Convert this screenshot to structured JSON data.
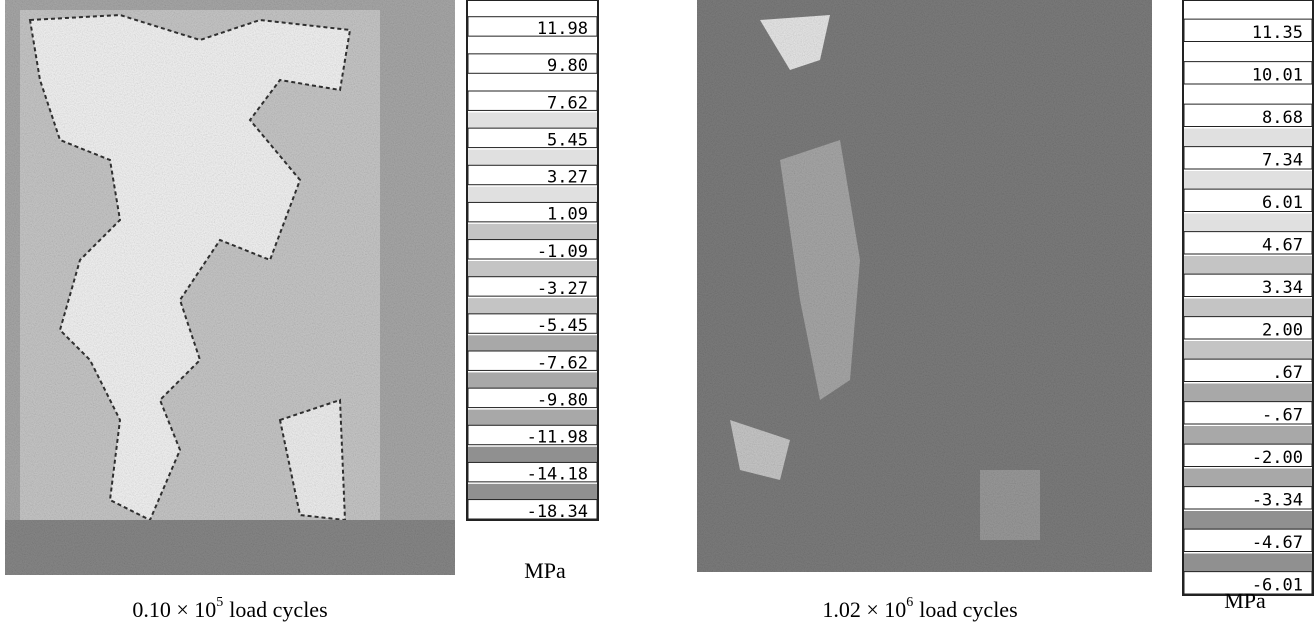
{
  "panels": [
    {
      "legend": [
        "11.98",
        "9.80",
        "7.62",
        "5.45",
        "3.27",
        "1.09",
        "-1.09",
        "-3.27",
        "-5.45",
        "-7.62",
        "-9.80",
        "-11.98",
        "-14.18",
        "-18.34"
      ],
      "unit": "MPa",
      "caption": {
        "base": "0.10 × 10",
        "exponent": "5",
        "text": "load cycles"
      }
    },
    {
      "legend": [
        "11.35",
        "10.01",
        "8.68",
        "7.34",
        "6.01",
        "4.67",
        "3.34",
        "2.00",
        ".67",
        "-.67",
        "-2.00",
        "-3.34",
        "-4.67",
        "-6.01"
      ],
      "unit": "MPa",
      "caption": {
        "base": "1.02 × 10",
        "exponent": "6",
        "text": "load cycles"
      }
    }
  ]
}
